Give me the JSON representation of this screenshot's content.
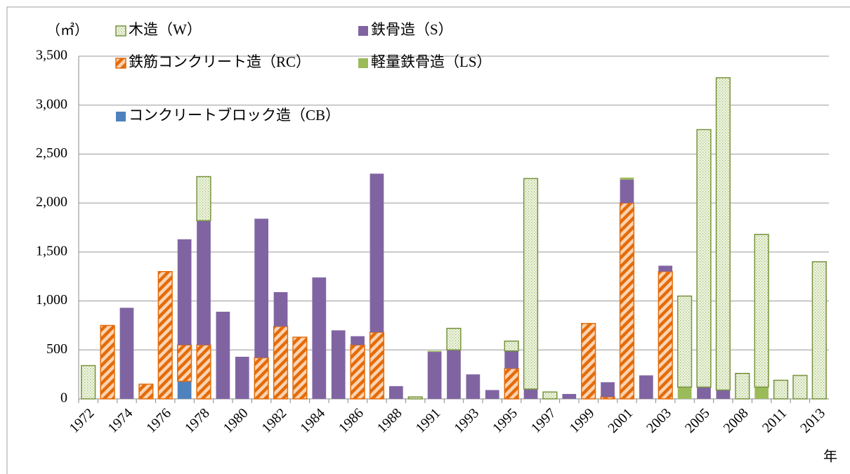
{
  "chart_data": {
    "type": "stacked_bar",
    "y_label": "（㎡）",
    "x_label": "年",
    "categories": [
      "1972",
      null,
      "1974",
      null,
      "1976",
      null,
      "1978",
      null,
      "1980",
      null,
      "1982",
      null,
      "1984",
      null,
      "1986",
      null,
      "1988",
      null,
      "1991",
      null,
      "1993",
      null,
      "1995",
      null,
      "1997",
      null,
      "1999",
      null,
      "2001",
      null,
      "2003",
      null,
      "2005",
      null,
      "2008",
      null,
      "2011",
      null,
      "2013"
    ],
    "series": [
      {
        "name": "コンクリートブロック造（CB）",
        "color": "#4f81bd",
        "values": [
          0,
          0,
          0,
          0,
          0,
          180,
          0,
          0,
          0,
          0,
          0,
          0,
          0,
          0,
          0,
          0,
          0,
          0,
          0,
          0,
          0,
          0,
          0,
          0,
          0,
          0,
          0,
          0,
          0,
          0,
          0,
          0,
          0,
          0,
          0,
          0,
          0,
          0,
          0
        ]
      },
      {
        "name": "鉄筋コンクリート造（RC）",
        "color": "#e46c0a",
        "values": [
          0,
          750,
          0,
          150,
          1300,
          370,
          550,
          0,
          0,
          420,
          740,
          630,
          0,
          0,
          550,
          680,
          0,
          0,
          0,
          0,
          0,
          0,
          310,
          0,
          0,
          0,
          770,
          20,
          2000,
          0,
          1300,
          0,
          0,
          0,
          0,
          0,
          0,
          0,
          0
        ]
      },
      {
        "name": "鉄骨造（S）",
        "color": "#8064a2",
        "values": [
          0,
          0,
          930,
          0,
          0,
          1080,
          1270,
          890,
          430,
          1420,
          350,
          0,
          1240,
          700,
          90,
          1620,
          130,
          0,
          480,
          500,
          250,
          90,
          180,
          100,
          0,
          50,
          0,
          150,
          240,
          240,
          60,
          0,
          120,
          90,
          0,
          0,
          0,
          0,
          0
        ]
      },
      {
        "name": "軽量鉄骨造（LS）",
        "color": "#9bbb59",
        "values": [
          0,
          0,
          0,
          0,
          0,
          0,
          0,
          0,
          0,
          0,
          0,
          0,
          0,
          0,
          0,
          0,
          0,
          0,
          10,
          0,
          0,
          0,
          0,
          0,
          0,
          0,
          0,
          0,
          20,
          0,
          0,
          120,
          0,
          0,
          0,
          120,
          0,
          0,
          0
        ]
      },
      {
        "name": "木造（W）",
        "color": "#77933c",
        "values": [
          340,
          0,
          0,
          0,
          0,
          0,
          450,
          0,
          0,
          0,
          0,
          0,
          0,
          0,
          0,
          0,
          0,
          20,
          0,
          220,
          0,
          0,
          100,
          2150,
          70,
          0,
          0,
          0,
          0,
          0,
          0,
          930,
          2630,
          3190,
          260,
          1560,
          190,
          240,
          1400
        ]
      }
    ],
    "ylim": [
      0,
      3500
    ],
    "yticks": [
      0,
      500,
      {
        "value": 1000,
        "label": "1,000"
      },
      {
        "value": 1500,
        "label": "1,500"
      },
      {
        "value": 2000,
        "label": "2,000"
      },
      {
        "value": 2500,
        "label": "2,500"
      },
      {
        "value": 3000,
        "label": "3,000"
      },
      {
        "value": 3500,
        "label": "3,500"
      }
    ],
    "grid": true
  }
}
